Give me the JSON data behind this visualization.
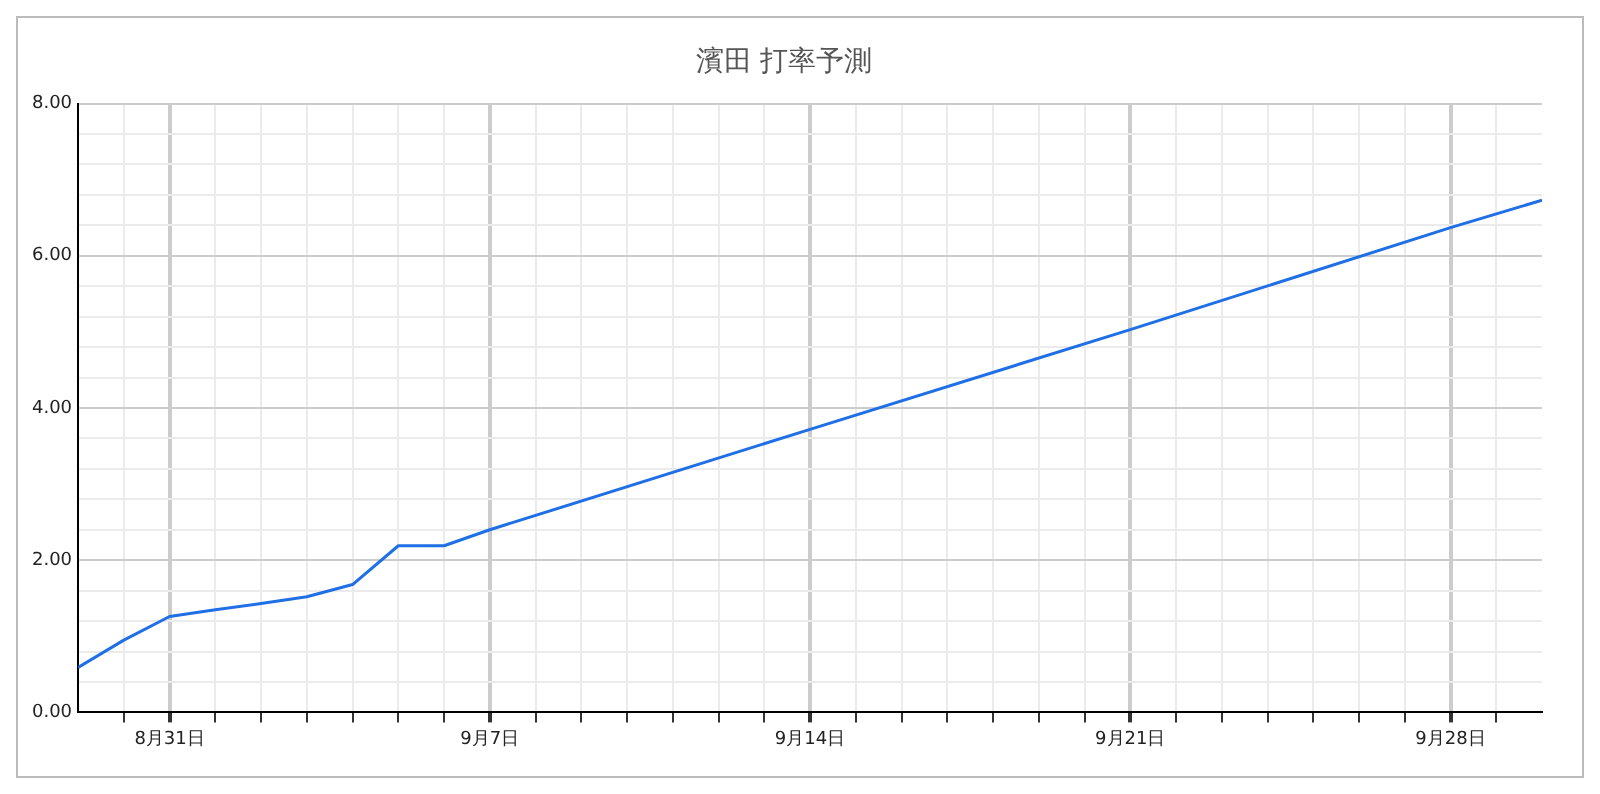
{
  "chart_data": {
    "type": "line",
    "title": "濱田 打率予測",
    "x": [
      "--08-29",
      "--08-30",
      "--08-31",
      "--09-01",
      "--09-02",
      "--09-03",
      "--09-04",
      "--09-05",
      "--09-06",
      "--09-07",
      "--09-14",
      "--09-21",
      "--09-28",
      "--09-30"
    ],
    "series": [
      {
        "color": "#1f6fe6",
        "values": [
          0.59,
          0.95,
          1.26,
          1.35,
          1.43,
          1.52,
          1.68,
          2.19,
          2.19,
          2.4,
          3.72,
          5.03,
          6.37,
          6.73
        ]
      }
    ],
    "xlim": [
      "--08-29",
      "--09-30"
    ],
    "xticks": [
      {
        "value": "--08-30",
        "label": null
      },
      {
        "value": "--08-31",
        "label": "8月31日"
      },
      {
        "value": "--09-01",
        "label": null
      },
      {
        "value": "--09-02",
        "label": null
      },
      {
        "value": "--09-03",
        "label": null
      },
      {
        "value": "--09-04",
        "label": null
      },
      {
        "value": "--09-05",
        "label": null
      },
      {
        "value": "--09-06",
        "label": null
      },
      {
        "value": "--09-07",
        "label": "9月7日"
      },
      {
        "value": "--09-08",
        "label": null
      },
      {
        "value": "--09-09",
        "label": null
      },
      {
        "value": "--09-10",
        "label": null
      },
      {
        "value": "--09-11",
        "label": null
      },
      {
        "value": "--09-12",
        "label": null
      },
      {
        "value": "--09-13",
        "label": null
      },
      {
        "value": "--09-14",
        "label": "9月14日"
      },
      {
        "value": "--09-15",
        "label": null
      },
      {
        "value": "--09-16",
        "label": null
      },
      {
        "value": "--09-17",
        "label": null
      },
      {
        "value": "--09-18",
        "label": null
      },
      {
        "value": "--09-19",
        "label": null
      },
      {
        "value": "--09-20",
        "label": null
      },
      {
        "value": "--09-21",
        "label": "9月21日"
      },
      {
        "value": "--09-22",
        "label": null
      },
      {
        "value": "--09-23",
        "label": null
      },
      {
        "value": "--09-24",
        "label": null
      },
      {
        "value": "--09-25",
        "label": null
      },
      {
        "value": "--09-26",
        "label": null
      },
      {
        "value": "--09-27",
        "label": null
      },
      {
        "value": "--09-28",
        "label": "9月28日"
      },
      {
        "value": "--09-29",
        "label": null
      }
    ],
    "ylim": [
      0,
      8
    ],
    "yticks": [
      {
        "value": 0,
        "label": "0.00"
      },
      {
        "value": 0.4,
        "label": null
      },
      {
        "value": 0.8,
        "label": null
      },
      {
        "value": 1.2,
        "label": null
      },
      {
        "value": 1.6,
        "label": null
      },
      {
        "value": 2,
        "label": "2.00"
      },
      {
        "value": 2.4,
        "label": null
      },
      {
        "value": 2.8,
        "label": null
      },
      {
        "value": 3.2,
        "label": null
      },
      {
        "value": 3.6,
        "label": null
      },
      {
        "value": 4,
        "label": "4.00"
      },
      {
        "value": 4.4,
        "label": null
      },
      {
        "value": 4.8,
        "label": null
      },
      {
        "value": 5.2,
        "label": null
      },
      {
        "value": 5.6,
        "label": null
      },
      {
        "value": 6,
        "label": "6.00"
      },
      {
        "value": 6.4,
        "label": null
      },
      {
        "value": 6.8,
        "label": null
      },
      {
        "value": 7.2,
        "label": null
      },
      {
        "value": 7.6,
        "label": null
      },
      {
        "value": 8,
        "label": "8.00"
      }
    ],
    "grid": true,
    "marker": "none",
    "line_style": "solid",
    "legend": false
  }
}
